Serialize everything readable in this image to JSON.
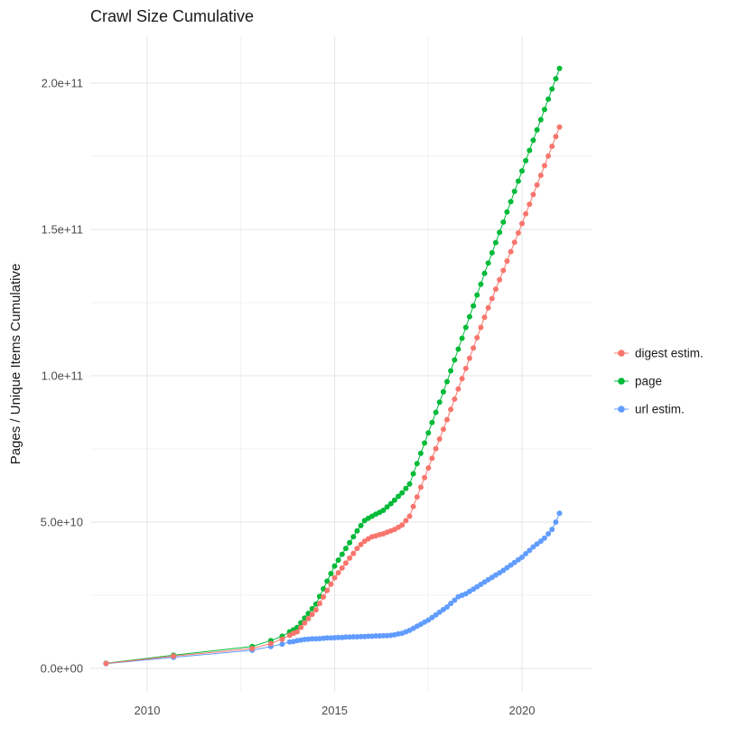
{
  "title": "Crawl Size Cumulative",
  "y_axis_label": "Pages / Unique Items Cumulative",
  "x_ticks": [
    "2010",
    "2015",
    "2020"
  ],
  "y_ticks": [
    "0.0e+00",
    "5.0e+10",
    "1.0e+11",
    "1.5e+11",
    "2.0e+11"
  ],
  "legend": {
    "items": [
      {
        "label": "digest estim.",
        "color": "#F8766D"
      },
      {
        "label": "page",
        "color": "#00BA38"
      },
      {
        "label": "url estim.",
        "color": "#619CFF"
      }
    ]
  },
  "colors": {
    "grid_major": "#e6e6e6",
    "grid_minor": "#f2f2f2",
    "tick_text": "#4d4d4d",
    "title_text": "#1a1a1a"
  },
  "chart_data": {
    "type": "scatter",
    "title": "Crawl Size Cumulative",
    "xlabel": "",
    "ylabel": "Pages / Unique Items Cumulative",
    "legend_position": "right",
    "grid": true,
    "x_tick_values": [
      2010,
      2015,
      2020
    ],
    "y_tick_values_e9": [
      0,
      50,
      100,
      150,
      200
    ],
    "x_minor_gridlines": [
      2012.5,
      2017.5
    ],
    "y_minor_gridlines_e9": [
      25,
      75,
      125,
      175
    ],
    "x_range": [
      2008.48,
      2021.85
    ],
    "y_range_e9": [
      0,
      216
    ],
    "value_unit": "items, values stored in units of 1e9 (billions)",
    "x": [
      2008.9,
      2010.7,
      2012.8,
      2013.3,
      2013.6,
      2013.8,
      2013.9,
      2014,
      2014.1,
      2014.2,
      2014.3,
      2014.4,
      2014.5,
      2014.6,
      2014.7,
      2014.8,
      2014.9,
      2015,
      2015.1,
      2015.2,
      2015.3,
      2015.4,
      2015.5,
      2015.6,
      2015.7,
      2015.8,
      2015.9,
      2016,
      2016.1,
      2016.2,
      2016.3,
      2016.4,
      2016.5,
      2016.6,
      2016.7,
      2016.8,
      2016.9,
      2017,
      2017.1,
      2017.2,
      2017.3,
      2017.4,
      2017.5,
      2017.6,
      2017.7,
      2017.8,
      2017.9,
      2018,
      2018.1,
      2018.2,
      2018.3,
      2018.4,
      2018.5,
      2018.6,
      2018.7,
      2018.8,
      2018.9,
      2019,
      2019.1,
      2019.2,
      2019.3,
      2019.4,
      2019.5,
      2019.6,
      2019.7,
      2019.8,
      2019.9,
      2020,
      2020.1,
      2020.2,
      2020.3,
      2020.4,
      2020.5,
      2020.6,
      2020.7,
      2020.8,
      2020.9,
      2021
    ],
    "series": [
      {
        "name": "digest estim.",
        "color": "#F8766D",
        "values_e9": [
          1.7,
          4.2,
          6.8,
          8.5,
          10,
          11.3,
          12,
          12.5,
          14,
          15.5,
          17,
          18.5,
          20,
          22.2,
          24.4,
          26.6,
          28.8,
          31,
          32.7,
          34.3,
          36,
          37.7,
          39.3,
          41,
          42.3,
          43.5,
          44.3,
          45,
          45.3,
          45.7,
          46,
          46.5,
          47,
          47.5,
          48.2,
          49,
          50.5,
          52,
          55.3,
          58.6,
          61.9,
          65.2,
          68.5,
          71.8,
          75.1,
          78.4,
          81.7,
          85,
          88.5,
          92,
          95.5,
          99,
          102.5,
          106,
          109.5,
          113,
          116.5,
          120,
          123.2,
          126.4,
          129.6,
          132.8,
          136,
          139.2,
          142.4,
          145.6,
          148.8,
          152,
          155.3,
          158.6,
          161.9,
          165.2,
          168.5,
          171.8,
          175.1,
          178.4,
          181.7,
          185
        ]
      },
      {
        "name": "page",
        "color": "#00BA38",
        "values_e9": [
          1.8,
          4.5,
          7.5,
          9.5,
          11,
          12.5,
          13.2,
          14,
          15.6,
          17.2,
          18.8,
          20.4,
          22,
          24.6,
          27.2,
          29.8,
          32.4,
          35,
          37,
          39,
          41,
          43,
          45,
          47,
          48.8,
          50.5,
          51.3,
          52,
          52.7,
          53.3,
          54,
          55.2,
          56.3,
          57.5,
          58.8,
          60,
          61.5,
          63,
          66.5,
          70,
          73.5,
          77,
          80.5,
          84,
          87.5,
          91,
          94.5,
          98,
          101.7,
          105.4,
          109.1,
          112.8,
          116.5,
          120.2,
          123.9,
          127.6,
          131.3,
          135,
          138.5,
          142,
          145.5,
          149,
          152.5,
          156,
          159.5,
          163,
          166.5,
          170,
          173.5,
          177,
          180.5,
          184,
          187.5,
          191,
          194.5,
          198,
          201.5,
          205
        ]
      },
      {
        "name": "url estim.",
        "color": "#619CFF",
        "values_e9": [
          1.6,
          3.8,
          6.2,
          7.5,
          8.3,
          9,
          9.2,
          9.5,
          9.7,
          9.9,
          10,
          10.1,
          10.1,
          10.2,
          10.3,
          10.4,
          10.4,
          10.5,
          10.6,
          10.6,
          10.7,
          10.7,
          10.8,
          10.8,
          10.9,
          10.9,
          11,
          11,
          11.1,
          11.1,
          11.2,
          11.2,
          11.3,
          11.5,
          11.8,
          12,
          12.5,
          13,
          13.7,
          14.4,
          15.1,
          15.8,
          16.5,
          17.4,
          18.3,
          19.2,
          20.1,
          21,
          22.2,
          23.3,
          24.5,
          25,
          25.5,
          26.3,
          27.1,
          27.9,
          28.7,
          29.5,
          30.3,
          31.1,
          31.9,
          32.7,
          33.5,
          34.4,
          35.3,
          36.2,
          37.1,
          38,
          39.2,
          40.3,
          41.5,
          42.5,
          43.5,
          44.5,
          46,
          47.5,
          50,
          53
        ]
      }
    ]
  }
}
